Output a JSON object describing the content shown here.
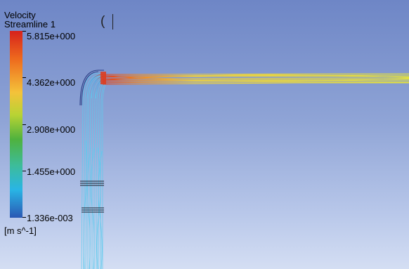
{
  "legend": {
    "title": "Velocity",
    "subtitle": "Streamline 1",
    "ticks": [
      "5.815e+000",
      "4.362e+000",
      "2.908e+000",
      "1.455e+000",
      "1.336e-003"
    ],
    "unit": "[m s^-1]"
  },
  "colors": {
    "background_top": "#6e86c6",
    "background_bottom": "#d4def3",
    "stream_low": "#56c8ec",
    "stream_mid": "#e8e23a",
    "stream_high": "#e0391a"
  },
  "icons": {
    "bracket": "paren-glyph"
  }
}
